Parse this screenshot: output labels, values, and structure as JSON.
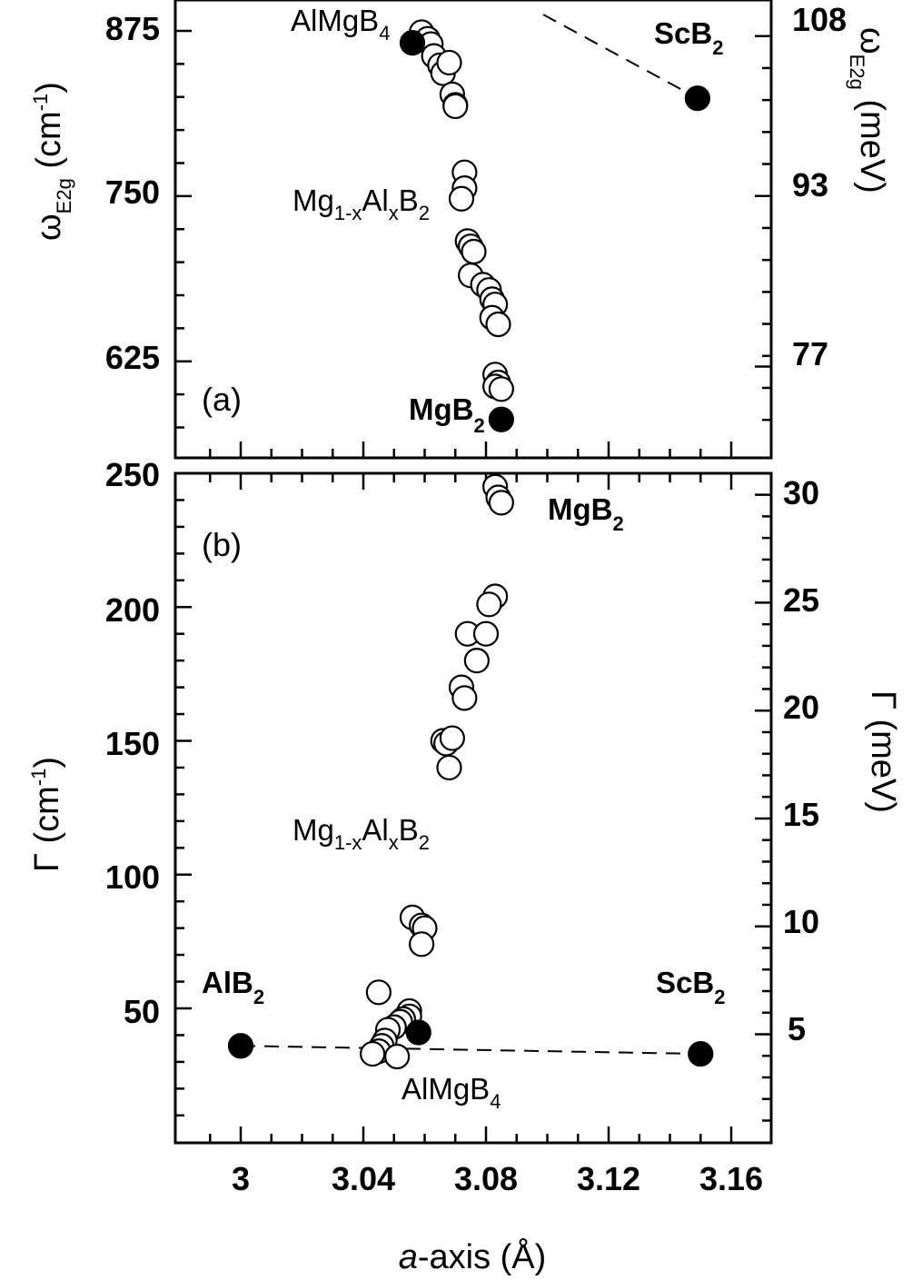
{
  "chart_data": [
    {
      "type": "scatter",
      "panel_label": "(a)",
      "xlabel_italic": "a",
      "xlabel_rest": "-axis (Å)",
      "ylabel": "ω",
      "ylabel_sub": "E2g",
      "ylabel_unit": " (cm",
      "ylabel_unit_sup": "-1",
      "ylabel_close": ")",
      "y2label": "ω",
      "y2label_sub": "E2g",
      "y2label_unit": " (meV)",
      "xlim": [
        2.98,
        3.165
      ],
      "ylim": [
        565,
        885
      ],
      "x_ticks": [
        "3",
        "3.04",
        "3.08",
        "3.12",
        "3.16"
      ],
      "y_ticks": [
        "625",
        "750",
        "875"
      ],
      "y2_ticks": [
        "77",
        "93",
        "108"
      ],
      "series": [
        {
          "marker": "open-circle",
          "points": [
            [
              3.059,
              874
            ],
            [
              3.061,
              869
            ],
            [
              3.062,
              865
            ],
            [
              3.063,
              856
            ],
            [
              3.065,
              849
            ],
            [
              3.066,
              843
            ],
            [
              3.068,
              851
            ],
            [
              3.069,
              827
            ],
            [
              3.07,
              819
            ],
            [
              3.07,
              818
            ],
            [
              3.073,
              768
            ],
            [
              3.073,
              756
            ],
            [
              3.072,
              748
            ],
            [
              3.074,
              716
            ],
            [
              3.075,
              712
            ],
            [
              3.076,
              708
            ],
            [
              3.075,
              690
            ],
            [
              3.079,
              683
            ],
            [
              3.081,
              679
            ],
            [
              3.082,
              672
            ],
            [
              3.083,
              668
            ],
            [
              3.082,
              658
            ],
            [
              3.084,
              653
            ],
            [
              3.083,
              615
            ],
            [
              3.084,
              609
            ],
            [
              3.083,
              606
            ],
            [
              3.085,
              604
            ]
          ]
        },
        {
          "marker": "filled-circle",
          "points": [
            [
              3.056,
              866
            ],
            [
              3.085,
              581
            ],
            [
              3.149,
              824
            ]
          ]
        }
      ],
      "annotations": [
        {
          "text": "AlMgB",
          "sub": "4",
          "style": "thin"
        },
        {
          "text": "ScB",
          "sub": "2",
          "style": "bold"
        },
        {
          "text": "Mg",
          "sub": "1-x",
          "mid": "Al",
          "sub2": "x",
          "end": "B",
          "sub3": "2",
          "style": "thin"
        },
        {
          "text": "MgB",
          "sub": "2",
          "style": "bold"
        }
      ]
    },
    {
      "type": "scatter",
      "panel_label": "(b)",
      "ylabel": "Γ",
      "ylabel_unit": " (cm",
      "ylabel_unit_sup": "-1",
      "ylabel_close": ")",
      "y2label": "Γ (meV)",
      "xlim": [
        2.98,
        3.165
      ],
      "ylim": [
        0,
        250
      ],
      "y_ticks": [
        "50",
        "100",
        "150",
        "200",
        "250"
      ],
      "y2_ticks": [
        "5",
        "10",
        "15",
        "20",
        "25",
        "30"
      ],
      "series": [
        {
          "marker": "open-circle",
          "points": [
            [
              3.083,
              245
            ],
            [
              3.084,
              241
            ],
            [
              3.085,
              239
            ],
            [
              3.083,
              204
            ],
            [
              3.081,
              201
            ],
            [
              3.074,
              190
            ],
            [
              3.08,
              190
            ],
            [
              3.077,
              180
            ],
            [
              3.072,
              170
            ],
            [
              3.073,
              166
            ],
            [
              3.066,
              150
            ],
            [
              3.067,
              149
            ],
            [
              3.069,
              151
            ],
            [
              3.068,
              140
            ],
            [
              3.056,
              84
            ],
            [
              3.059,
              81
            ],
            [
              3.06,
              80
            ],
            [
              3.059,
              74
            ],
            [
              3.045,
              56
            ],
            [
              3.055,
              49
            ],
            [
              3.055,
              47
            ],
            [
              3.053,
              46
            ],
            [
              3.052,
              45
            ],
            [
              3.05,
              43
            ],
            [
              3.048,
              42
            ],
            [
              3.047,
              38
            ],
            [
              3.046,
              36
            ],
            [
              3.045,
              34
            ],
            [
              3.043,
              33
            ],
            [
              3.051,
              32
            ]
          ]
        },
        {
          "marker": "filled-circle",
          "points": [
            [
              3.0,
              36
            ],
            [
              3.058,
              41
            ],
            [
              3.15,
              33
            ]
          ]
        }
      ],
      "annotations": [
        {
          "text": "MgB",
          "sub": "2",
          "style": "bold"
        },
        {
          "text": "Mg",
          "sub": "1-x",
          "mid": "Al",
          "sub2": "x",
          "end": "B",
          "sub3": "2",
          "style": "thin"
        },
        {
          "text": "AlB",
          "sub": "2",
          "style": "bold"
        },
        {
          "text": "ScB",
          "sub": "2",
          "style": "bold"
        },
        {
          "text": "AlMgB",
          "sub": "4",
          "style": "thin"
        }
      ]
    }
  ]
}
